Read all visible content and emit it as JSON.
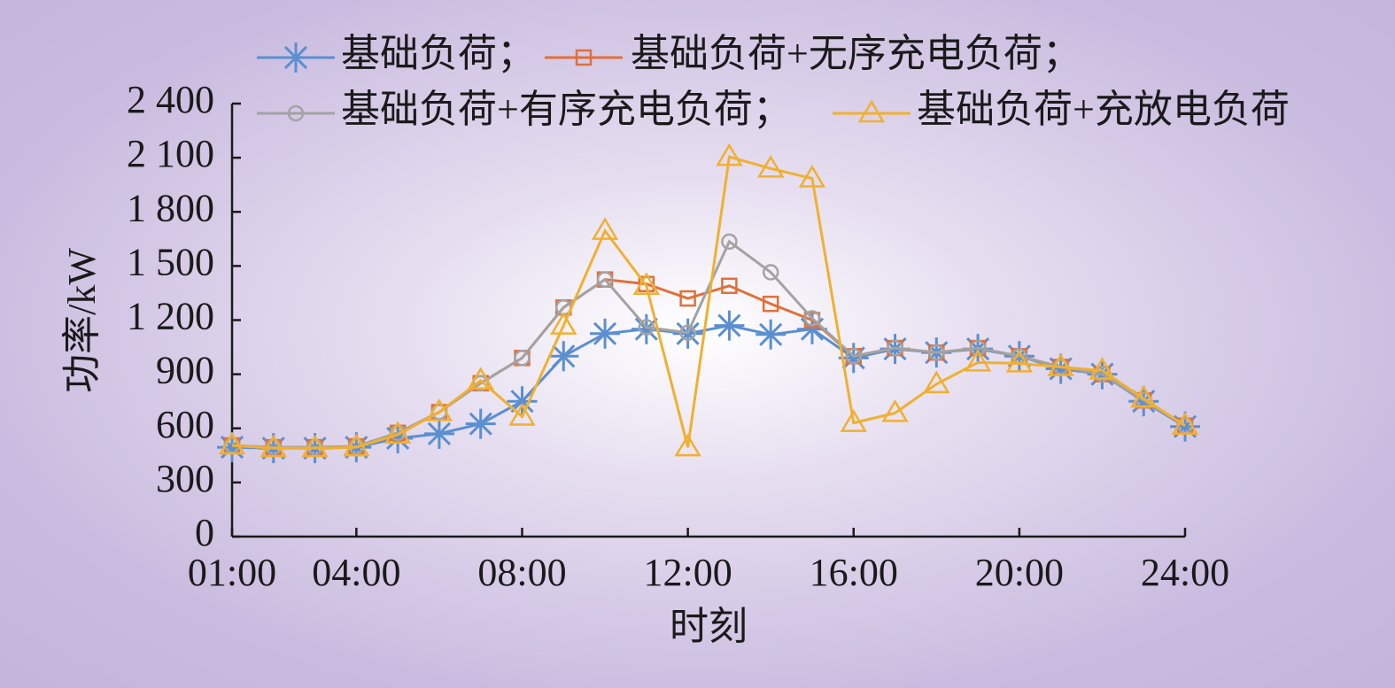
{
  "chart_data": {
    "type": "line",
    "x_label": "时刻",
    "y_label": "功率/kW",
    "x": [
      1,
      2,
      3,
      4,
      5,
      6,
      7,
      8,
      9,
      10,
      11,
      12,
      13,
      14,
      15,
      16,
      17,
      18,
      19,
      20,
      21,
      22,
      23,
      24
    ],
    "xlim": [
      1,
      24
    ],
    "xticks": [
      {
        "value": 1,
        "label": "01:00"
      },
      {
        "value": 4,
        "label": "04:00"
      },
      {
        "value": 8,
        "label": "08:00"
      },
      {
        "value": 12,
        "label": "12:00"
      },
      {
        "value": 16,
        "label": "16:00"
      },
      {
        "value": 20,
        "label": "20:00"
      },
      {
        "value": 24,
        "label": "24:00"
      }
    ],
    "ylim": [
      0,
      2400
    ],
    "yticks": [
      0,
      300,
      600,
      900,
      {
        "value": 1200,
        "label": "1 200"
      },
      {
        "value": 1500,
        "label": "1 500"
      },
      {
        "value": 1800,
        "label": "1 800"
      },
      {
        "value": 2100,
        "label": "2 100"
      },
      {
        "value": 2400,
        "label": "2 400"
      }
    ],
    "series": [
      {
        "name": "基础负荷；",
        "color": "#5b8fd0",
        "marker": "asterisk",
        "values": [
          495,
          490,
          490,
          495,
          545,
          570,
          625,
          750,
          1000,
          1125,
          1150,
          1125,
          1170,
          1120,
          1150,
          990,
          1040,
          1020,
          1040,
          1000,
          930,
          900,
          750,
          610
        ]
      },
      {
        "name": "基础负荷+无序充电负荷；",
        "color": "#e0703a",
        "marker": "square",
        "values": [
          505,
          495,
          495,
          500,
          575,
          690,
          850,
          990,
          1270,
          1425,
          1400,
          1320,
          1390,
          1290,
          1200,
          1000,
          1045,
          1020,
          1045,
          1000,
          940,
          900,
          755,
          615
        ]
      },
      {
        "name": "基础负荷+有序充电负荷；",
        "color": "#a3a3a3",
        "marker": "circle",
        "values": [
          505,
          495,
          495,
          500,
          575,
          690,
          850,
          990,
          1270,
          1425,
          1160,
          1130,
          1635,
          1465,
          1210,
          1000,
          1045,
          1020,
          1045,
          1000,
          940,
          900,
          755,
          615
        ]
      },
      {
        "name": "基础负荷+充放电负荷",
        "color": "#f0b030",
        "marker": "triangle",
        "values": [
          505,
          490,
          490,
          495,
          565,
          690,
          865,
          665,
          1170,
          1695,
          1390,
          495,
          2105,
          2040,
          1985,
          630,
          685,
          845,
          965,
          960,
          940,
          920,
          765,
          615
        ]
      }
    ]
  }
}
